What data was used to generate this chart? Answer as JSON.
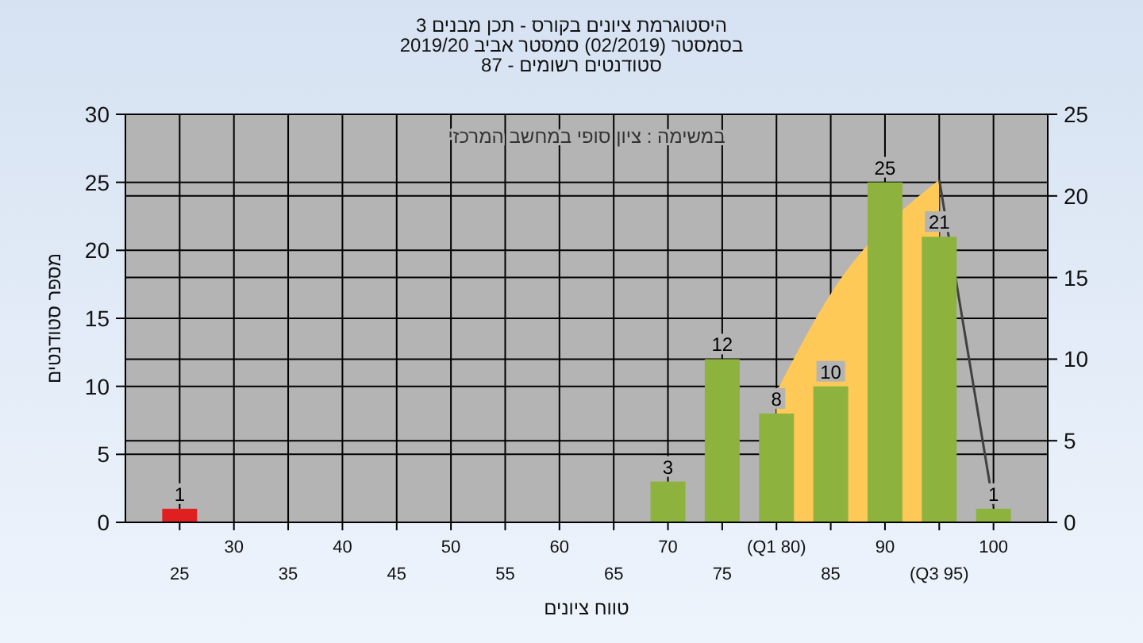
{
  "chart_data": {
    "type": "bar",
    "title": "היסטוגרמת ציונים בקורס - תכן מבנים 3\nבסמסטר  (02/2019)  סמסטר אביב 2019/20\nסטודנטים רשומים - 87",
    "xlabel": "טווח ציונים",
    "ylabel": "מספר סטודנטים",
    "annotations": [
      "במשימה : ציון סופי במחשב המרכזי"
    ],
    "categories": [
      "25",
      "30",
      "35",
      "40",
      "45",
      "50",
      "55",
      "60",
      "65",
      "70",
      "75",
      "(Q1 80)",
      "85",
      "90",
      "(Q3 95)",
      "100"
    ],
    "series": [
      {
        "type": "area",
        "axis": "y2",
        "color": "#ffc957",
        "values": [
          null,
          null,
          null,
          null,
          null,
          null,
          null,
          null,
          null,
          null,
          null,
          8,
          14,
          null,
          21,
          null
        ]
      },
      {
        "type": "line",
        "axis": "y2",
        "color": "#404040",
        "values": [
          null,
          null,
          null,
          null,
          null,
          null,
          null,
          null,
          null,
          null,
          null,
          null,
          null,
          null,
          21,
          1
        ]
      },
      {
        "colors": [
          "#e02020",
          "#8db33e",
          "#8db33e",
          "#8db33e",
          "#8db33e",
          "#8db33e",
          "#8db33e",
          "#8db33e",
          "#8db33e",
          "#8db33e",
          "#8db33e",
          "#8db33e",
          "#8db33e",
          "#8db33e",
          "#8db33e",
          "#8db33e"
        ],
        "values": [
          1,
          0,
          0,
          0,
          0,
          0,
          0,
          0,
          0,
          3,
          12,
          8,
          10,
          25,
          21,
          1
        ],
        "value_labels": [
          "1",
          null,
          null,
          null,
          null,
          null,
          null,
          null,
          null,
          "3",
          "12",
          "8",
          "10",
          "25",
          "21",
          "1"
        ]
      }
    ],
    "ylim": [
      0,
      30
    ],
    "yticks": [
      0,
      5,
      10,
      15,
      20,
      25,
      30
    ],
    "y2lim": [
      0,
      25
    ],
    "y2ticks": [
      0,
      5,
      10,
      15,
      20,
      25
    ],
    "grid": true
  }
}
